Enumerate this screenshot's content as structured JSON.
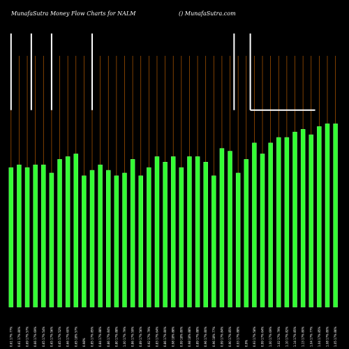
{
  "header": {
    "left": "MunafaSutra  Money Flow  Charts for NALM",
    "right": "() MunafaSutra.com"
  },
  "colors": {
    "background": "#000000",
    "bar": "#33ff33",
    "bar_edge": "#7aff7a",
    "gridline": "#b35900",
    "white_line": "#ffffff"
  },
  "chart_data": {
    "type": "bar",
    "title": "MunafaSutra  Money Flow  Charts for NALM",
    "ylim": [
      0,
      100
    ],
    "grid": true,
    "categories": [
      "0.61 17% 77%",
      "0.61 17% 80%",
      "0.69 17% 57%",
      "0.66 17% 69%",
      "0.65 17% 54%",
      "0.65 17% 56%",
      "0.65 17% 52%",
      "0.66 17% 60%",
      "0.65 18% 57%",
      "0.98%",
      "0.85 17% 85%",
      "0.84 17% 88%",
      "0.86 17% 84%",
      "0.80 17% 88%",
      "1.00 17% 79%",
      "0.86 17% 59%",
      "0.89 17% 56%",
      "0.92 17% 79%",
      "0.83 17% 64%",
      "0.86 17% 80%",
      "0.98 18% 88%",
      "0.99 18% 80%",
      "0.98 18% 88%",
      "0.89 17% 88%",
      "0.96 17% 80%",
      "0.96 18% 77%",
      "0.99 17% 84%",
      "0.90 17% 85%",
      "0.93 17% 88%",
      "0.9%",
      "0.93 17% 58%",
      "0.99 17% 64%",
      "1.00 17% 69%",
      "1.02 17% 79%",
      "1.10 17% 82%",
      "1.14 17% 85%",
      "1.13 17% 80%",
      "1.04 17% 77%",
      "1.04 17% 85%",
      "1.08 17% 80%",
      "1.05 17% 86%"
    ],
    "values": [
      51,
      52,
      51,
      52,
      52,
      49,
      54,
      55,
      56,
      48,
      50,
      52,
      50,
      48,
      49,
      54,
      48,
      51,
      55,
      53,
      55,
      51,
      55,
      55,
      53,
      48,
      58,
      57,
      49,
      54,
      60,
      56,
      60,
      62,
      62,
      64,
      65,
      63,
      66,
      67,
      67
    ],
    "white_segments": [
      {
        "x": 0,
        "y_top": 100,
        "y_bottom": 72
      },
      {
        "x": 2.5,
        "y_top": 100,
        "y_bottom": 72
      },
      {
        "x": 5,
        "y_top": 100,
        "y_bottom": 72
      },
      {
        "x": 10,
        "y_top": 100,
        "y_bottom": 72
      },
      {
        "x": 27.5,
        "y_top": 100,
        "y_bottom": 72
      },
      {
        "x": 29.5,
        "y_top": 100,
        "y_bottom": 72
      },
      {
        "x": 29.5,
        "x_end": 37.5,
        "y": 72
      }
    ]
  }
}
